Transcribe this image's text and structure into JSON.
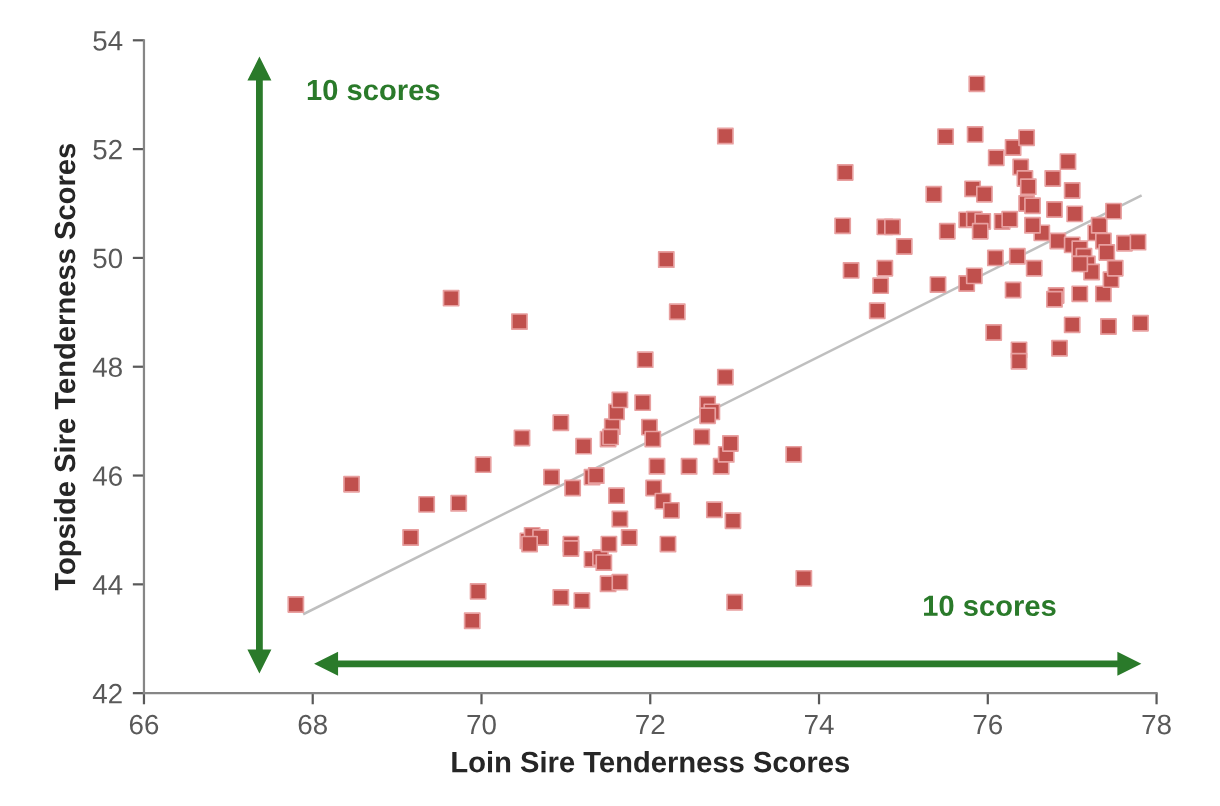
{
  "chart_data": {
    "type": "scatter",
    "xlabel": "Loin Sire Tenderness Scores",
    "ylabel": "Topside Sire Tenderness Scores",
    "xlim": [
      66,
      78
    ],
    "xticks": [
      66,
      68,
      70,
      72,
      74,
      76,
      78
    ],
    "ylim": [
      42,
      54
    ],
    "yticks": [
      42,
      44,
      46,
      48,
      50,
      52,
      54
    ],
    "grid": false,
    "legend": false,
    "annotations": [
      "10 scores",
      "10 scores"
    ],
    "series": [
      {
        "marker": "square",
        "color": "#c0504d",
        "x": [
          67.8,
          68.46,
          69.16,
          69.35,
          69.64,
          69.73,
          69.89,
          69.96,
          70.02,
          70.45,
          70.48,
          70.55,
          70.6,
          70.7,
          70.57,
          70.83,
          70.94,
          70.94,
          71.06,
          71.06,
          71.08,
          71.19,
          71.21,
          71.31,
          71.36,
          71.31,
          71.41,
          71.45,
          71.51,
          71.5,
          71.55,
          71.6,
          71.64,
          71.53,
          71.5,
          71.64,
          71.6,
          71.64,
          71.75,
          71.91,
          71.94,
          71.99,
          72.03,
          72.04,
          72.08,
          72.19,
          72.15,
          72.25,
          72.21,
          72.32,
          72.46,
          72.61,
          72.68,
          72.73,
          72.68,
          72.76,
          72.89,
          72.89,
          72.84,
          72.9,
          72.95,
          72.98,
          73.0,
          73.7,
          73.82,
          74.31,
          74.28,
          74.38,
          74.69,
          74.73,
          74.78,
          74.78,
          74.87,
          75.01,
          75.36,
          75.41,
          75.5,
          75.52,
          75.75,
          75.84,
          75.75,
          75.84,
          75.94,
          75.82,
          75.85,
          75.87,
          75.91,
          75.96,
          76.07,
          76.09,
          76.1,
          76.17,
          76.26,
          76.3,
          76.3,
          76.39,
          76.44,
          76.48,
          76.35,
          76.37,
          76.37,
          76.46,
          76.46,
          76.53,
          76.55,
          76.64,
          76.77,
          76.79,
          76.83,
          76.81,
          76.79,
          76.85,
          76.95,
          77.0,
          77.03,
          77.0,
          77.09,
          77.14,
          77.0,
          77.09,
          77.18,
          77.23,
          77.28,
          77.32,
          77.37,
          77.41,
          77.37,
          77.46,
          77.49,
          77.51,
          77.43,
          77.62,
          77.78,
          77.81,
          77.09,
          76.53
        ],
        "values": [
          43.63,
          45.84,
          44.86,
          45.47,
          49.26,
          45.49,
          43.33,
          43.87,
          46.2,
          48.83,
          46.69,
          44.8,
          44.9,
          44.86,
          44.74,
          45.97,
          46.97,
          43.76,
          44.74,
          44.66,
          45.77,
          43.7,
          46.54,
          45.97,
          46.0,
          44.46,
          44.49,
          44.4,
          44.74,
          46.67,
          46.9,
          47.17,
          47.39,
          46.71,
          44.01,
          44.04,
          45.63,
          45.2,
          44.86,
          47.34,
          48.13,
          46.89,
          46.67,
          45.77,
          46.17,
          49.97,
          45.53,
          45.36,
          44.74,
          49.01,
          46.17,
          46.71,
          47.31,
          47.17,
          47.1,
          45.37,
          47.81,
          52.24,
          46.17,
          46.39,
          46.59,
          45.17,
          43.67,
          46.39,
          44.11,
          51.57,
          50.59,
          49.77,
          49.03,
          49.49,
          49.81,
          50.57,
          50.57,
          50.21,
          51.17,
          49.51,
          52.23,
          50.49,
          49.53,
          49.67,
          50.7,
          50.71,
          50.67,
          51.27,
          52.27,
          53.2,
          50.49,
          51.17,
          48.63,
          50.0,
          51.84,
          50.67,
          50.71,
          49.41,
          52.03,
          51.67,
          51.46,
          51.31,
          50.03,
          48.31,
          48.1,
          52.21,
          51.0,
          50.96,
          49.81,
          50.46,
          51.46,
          50.89,
          50.31,
          49.31,
          49.24,
          48.34,
          51.77,
          51.24,
          50.81,
          50.24,
          50.17,
          50.03,
          48.77,
          49.34,
          49.89,
          49.74,
          50.46,
          50.6,
          50.31,
          50.1,
          49.34,
          49.6,
          50.86,
          49.81,
          48.74,
          50.27,
          50.29,
          48.8,
          49.89,
          50.6
        ]
      },
      {
        "type": "line",
        "color": "#bfbfbf",
        "x": [
          67.9,
          77.81
        ],
        "values": [
          43.46,
          51.14
        ]
      }
    ]
  }
}
